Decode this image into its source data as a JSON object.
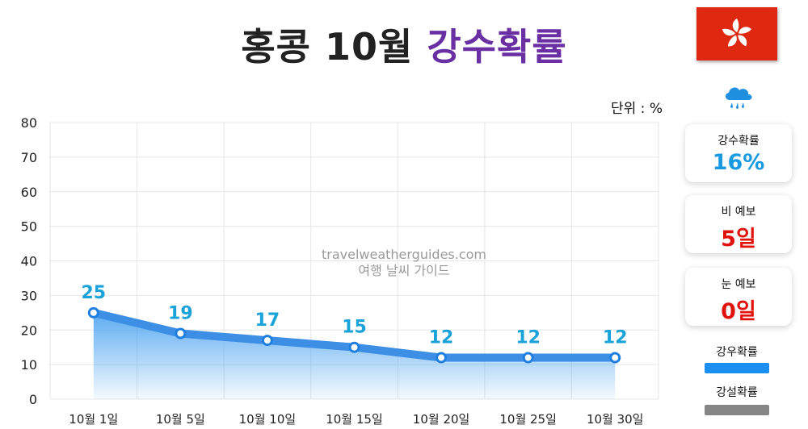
{
  "header": {
    "title_main": "홍콩 10월",
    "title_accent": "강수확률"
  },
  "unit_label": "단위 : %",
  "icons": {
    "flag": "hong-kong-flag-icon",
    "weather": "rain-cloud-icon"
  },
  "cards": [
    {
      "label": "강수확률",
      "value": "16%",
      "color": "#1a9ae0"
    },
    {
      "label": "비 예보",
      "value": "5일",
      "color": "#e0120b"
    },
    {
      "label": "눈 예보",
      "value": "0일",
      "color": "#e0120b"
    }
  ],
  "legend": [
    {
      "label": "강우확률",
      "color": "#1a8ff0"
    },
    {
      "label": "강설확률",
      "color": "#858585"
    }
  ],
  "watermark": {
    "line1": "travelweatherguides.com",
    "line2": "여행 날씨 가이드"
  },
  "colors": {
    "accent_title": "#6a2fa3",
    "line": "#3d8fe6",
    "point_label": "#1aa3d9",
    "flag": "#de2910"
  },
  "chart_data": {
    "type": "area",
    "categories": [
      "10월 1일",
      "10월 5일",
      "10월 10일",
      "10월 15일",
      "10월 20일",
      "10월 25일",
      "10월 30일"
    ],
    "series": [
      {
        "values": [
          25,
          19,
          17,
          15,
          12,
          12,
          12
        ]
      }
    ],
    "ylim": [
      0,
      80
    ],
    "yticks": [
      0,
      10,
      20,
      30,
      40,
      50,
      60,
      70,
      80
    ],
    "grid": true,
    "data_labels": true
  }
}
